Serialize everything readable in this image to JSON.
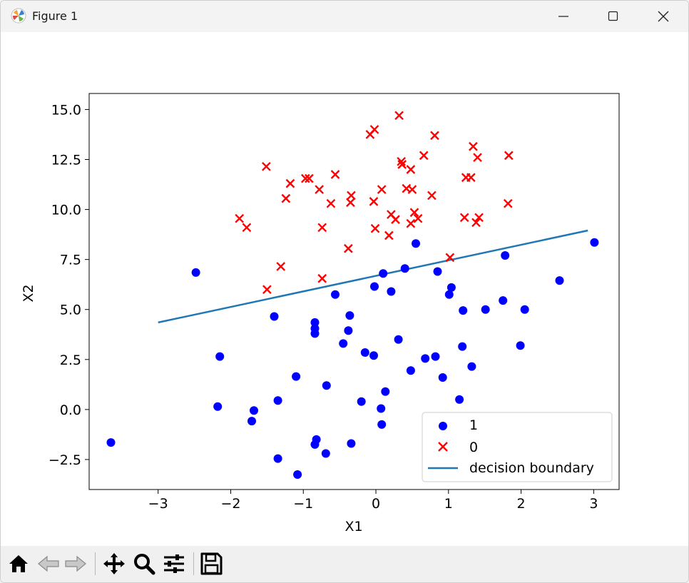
{
  "window": {
    "title": "Figure 1"
  },
  "toolbar": {
    "buttons": [
      "home-icon",
      "back-icon",
      "forward-icon",
      "pan-icon",
      "zoom-icon",
      "configure-subplots-icon",
      "save-icon"
    ]
  },
  "colors": {
    "class1": "#0000ff",
    "class0": "#ff0000",
    "boundary": "#1f77b4"
  },
  "chart_data": {
    "type": "scatter",
    "title": "",
    "xlabel": "X1",
    "ylabel": "X2",
    "xlim": [
      -3.95,
      3.35
    ],
    "ylim": [
      -4.0,
      15.8
    ],
    "xticks": [
      -3,
      -2,
      -1,
      0,
      1,
      2,
      3
    ],
    "xtick_labels": [
      "−3",
      "−2",
      "−1",
      "0",
      "1",
      "2",
      "3"
    ],
    "yticks": [
      -2.5,
      0.0,
      2.5,
      5.0,
      7.5,
      10.0,
      12.5,
      15.0
    ],
    "ytick_labels": [
      "−2.5",
      "0.0",
      "2.5",
      "5.0",
      "7.5",
      "10.0",
      "12.5",
      "15.0"
    ],
    "grid": false,
    "legend_position": "lower-right",
    "series": [
      {
        "name": "1",
        "marker": "circle",
        "color": "#0000ff",
        "points": [
          [
            -3.65,
            -1.65
          ],
          [
            -2.48,
            6.85
          ],
          [
            -2.15,
            2.65
          ],
          [
            -2.18,
            0.15
          ],
          [
            -1.68,
            -0.05
          ],
          [
            -1.71,
            -0.58
          ],
          [
            -1.4,
            4.65
          ],
          [
            -1.35,
            0.45
          ],
          [
            -1.35,
            -2.45
          ],
          [
            -1.1,
            1.65
          ],
          [
            -1.08,
            -3.25
          ],
          [
            -0.84,
            4.35
          ],
          [
            -0.84,
            4.05
          ],
          [
            -0.84,
            3.8
          ],
          [
            -0.82,
            -1.5
          ],
          [
            -0.84,
            -1.75
          ],
          [
            -0.68,
            1.2
          ],
          [
            -0.69,
            -2.2
          ],
          [
            -0.56,
            5.75
          ],
          [
            -0.45,
            3.3
          ],
          [
            -0.38,
            3.95
          ],
          [
            -0.36,
            4.7
          ],
          [
            -0.34,
            -1.7
          ],
          [
            -0.2,
            0.4
          ],
          [
            -0.15,
            2.85
          ],
          [
            -0.02,
            6.15
          ],
          [
            -0.03,
            2.7
          ],
          [
            0.07,
            0.05
          ],
          [
            0.08,
            -0.75
          ],
          [
            0.1,
            6.8
          ],
          [
            0.13,
            0.9
          ],
          [
            0.21,
            5.9
          ],
          [
            0.31,
            3.5
          ],
          [
            0.4,
            7.05
          ],
          [
            0.48,
            1.95
          ],
          [
            0.55,
            8.3
          ],
          [
            0.68,
            2.55
          ],
          [
            0.82,
            2.65
          ],
          [
            0.85,
            6.9
          ],
          [
            0.92,
            1.6
          ],
          [
            1.01,
            5.75
          ],
          [
            1.04,
            6.1
          ],
          [
            1.15,
            0.5
          ],
          [
            1.19,
            3.15
          ],
          [
            1.2,
            4.95
          ],
          [
            1.32,
            2.15
          ],
          [
            1.51,
            5.0
          ],
          [
            1.75,
            5.45
          ],
          [
            1.78,
            7.7
          ],
          [
            1.99,
            3.2
          ],
          [
            2.05,
            5.0
          ],
          [
            2.53,
            6.45
          ],
          [
            3.01,
            8.35
          ]
        ]
      },
      {
        "name": "0",
        "marker": "x",
        "color": "#ff0000",
        "points": [
          [
            -1.88,
            9.55
          ],
          [
            -1.78,
            9.1
          ],
          [
            -1.51,
            12.15
          ],
          [
            -1.5,
            6.0
          ],
          [
            -1.31,
            7.15
          ],
          [
            -1.24,
            10.55
          ],
          [
            -1.18,
            11.3
          ],
          [
            -0.97,
            11.55
          ],
          [
            -0.92,
            11.55
          ],
          [
            -0.78,
            11.0
          ],
          [
            -0.74,
            9.1
          ],
          [
            -0.74,
            6.55
          ],
          [
            -0.62,
            10.3
          ],
          [
            -0.56,
            11.75
          ],
          [
            -0.38,
            8.05
          ],
          [
            -0.34,
            10.7
          ],
          [
            -0.35,
            10.35
          ],
          [
            -0.08,
            13.75
          ],
          [
            -0.03,
            10.4
          ],
          [
            -0.02,
            14.0
          ],
          [
            -0.01,
            9.05
          ],
          [
            0.08,
            11.0
          ],
          [
            0.18,
            8.7
          ],
          [
            0.21,
            9.75
          ],
          [
            0.27,
            9.5
          ],
          [
            0.32,
            14.7
          ],
          [
            0.35,
            12.4
          ],
          [
            0.36,
            12.25
          ],
          [
            0.42,
            11.05
          ],
          [
            0.48,
            12.0
          ],
          [
            0.48,
            9.3
          ],
          [
            0.5,
            11.0
          ],
          [
            0.53,
            9.85
          ],
          [
            0.58,
            9.55
          ],
          [
            0.66,
            12.7
          ],
          [
            0.77,
            10.7
          ],
          [
            0.81,
            13.7
          ],
          [
            1.02,
            7.6
          ],
          [
            1.22,
            9.6
          ],
          [
            1.24,
            11.6
          ],
          [
            1.31,
            11.6
          ],
          [
            1.34,
            13.15
          ],
          [
            1.38,
            9.35
          ],
          [
            1.4,
            12.6
          ],
          [
            1.42,
            9.6
          ],
          [
            1.82,
            10.3
          ],
          [
            1.83,
            12.7
          ]
        ]
      },
      {
        "name": "decision boundary",
        "marker": "line",
        "color": "#1f77b4",
        "points": [
          [
            -3.0,
            4.35
          ],
          [
            2.92,
            8.95
          ]
        ]
      }
    ],
    "legend_entries": [
      "1",
      "0",
      "decision boundary"
    ]
  }
}
